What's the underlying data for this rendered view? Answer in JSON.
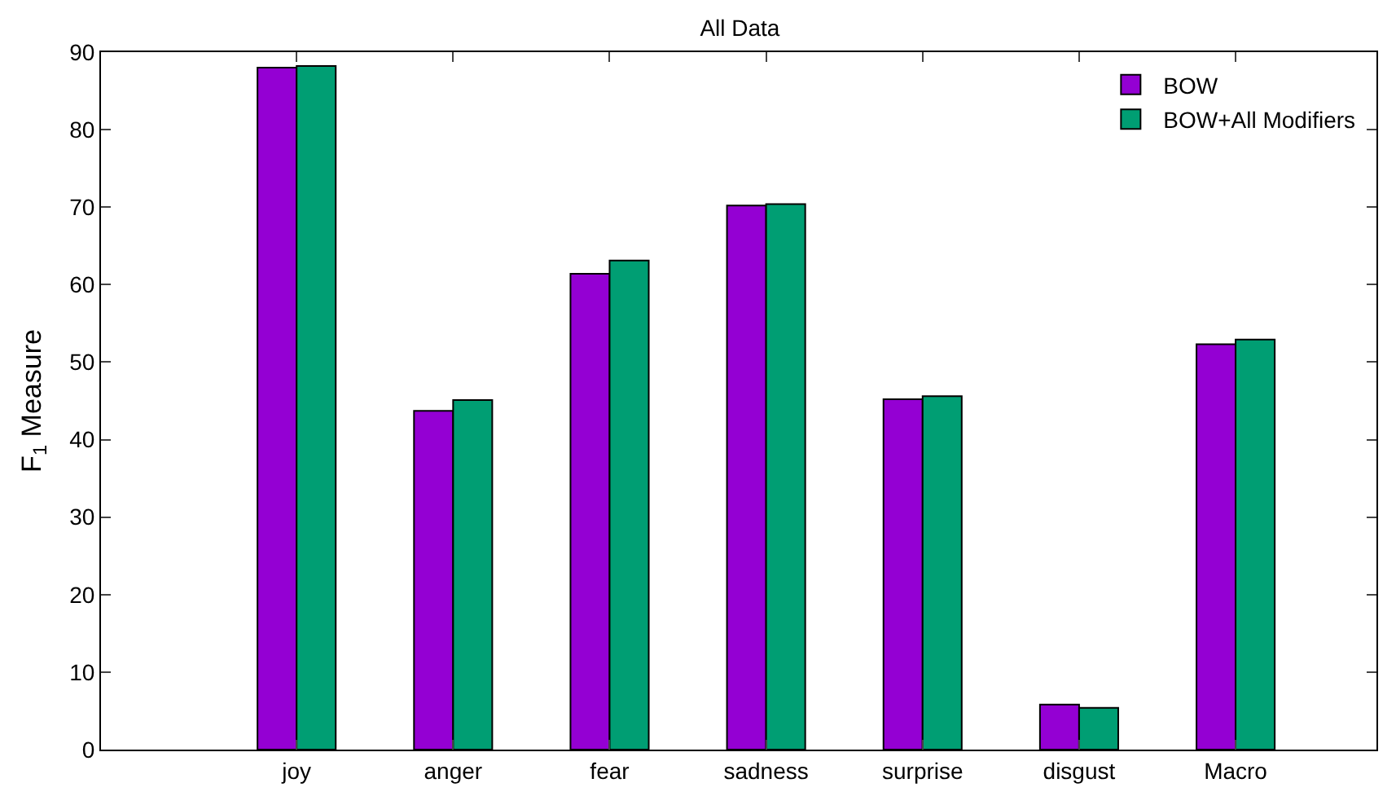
{
  "chart_data": {
    "type": "bar",
    "title": "All Data",
    "ylabel": "F$_{1}$ Measure",
    "categories": [
      "joy",
      "anger",
      "fear",
      "sadness",
      "surprise",
      "disgust",
      "Macro"
    ],
    "series": [
      {
        "name": "BOW",
        "color": "#9400d3",
        "values": [
          88.0,
          43.7,
          61.4,
          70.2,
          45.2,
          5.8,
          52.3
        ]
      },
      {
        "name": "BOW+All Modifiers",
        "color": "#009e73",
        "values": [
          88.2,
          45.1,
          63.1,
          70.4,
          45.6,
          5.4,
          52.9
        ]
      }
    ],
    "ylim": [
      0,
      90
    ],
    "yticks": [
      0,
      10,
      20,
      30,
      40,
      50,
      60,
      70,
      80,
      90
    ],
    "grid": false,
    "legend": "top right"
  }
}
